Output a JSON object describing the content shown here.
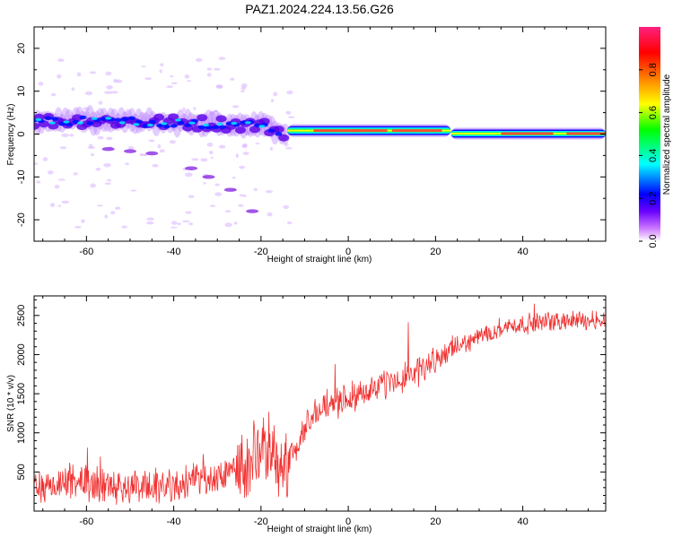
{
  "title": "PAZ1.2024.224.13.56.G26",
  "colors": {
    "snr_line": "#f03030",
    "axis": "#000000"
  },
  "chart_data": [
    {
      "type": "heatmap",
      "name": "spectrogram",
      "xlabel": "Height of straight line (km)",
      "ylabel": "Frequency (Hz)",
      "xlim": [
        -72,
        59
      ],
      "ylim": [
        -25,
        25
      ],
      "xticks": [
        -60,
        -40,
        -20,
        0,
        20,
        40
      ],
      "xtick_labels": [
        "-60",
        "-40",
        "-20",
        "0",
        "20",
        "40"
      ],
      "yticks": [
        20,
        10,
        0,
        -10,
        -20
      ],
      "ytick_labels": [
        "20",
        "10",
        "0",
        "-10",
        "-20"
      ],
      "colorbar": {
        "label": "Normalized spectral amplitude",
        "range": [
          0,
          1
        ],
        "ticks": [
          0.0,
          0.2,
          0.4,
          0.6,
          0.8
        ],
        "tick_labels": [
          "0.0",
          "0.2",
          "0.4",
          "0.6",
          "0.8"
        ],
        "colormap": [
          "#ffffff",
          "#cc77ff",
          "#6a00ff",
          "#0000ff",
          "#00ffff",
          "#00ff00",
          "#ffff00",
          "#ff8000",
          "#ff0000",
          "#ff2080"
        ]
      },
      "ridge": [
        {
          "x": -72,
          "y": 3.0
        },
        {
          "x": -60,
          "y": 3.2
        },
        {
          "x": -45,
          "y": 2.8
        },
        {
          "x": -30,
          "y": 2.5
        },
        {
          "x": -20,
          "y": 2.0
        },
        {
          "x": -14,
          "y": 0.3
        },
        {
          "x": 0,
          "y": 0.8
        },
        {
          "x": 22,
          "y": 0.8
        },
        {
          "x": 24,
          "y": 0.0
        },
        {
          "x": 59,
          "y": 0.3
        }
      ]
    },
    {
      "type": "line",
      "name": "snr",
      "xlabel": "Height of straight line (km)",
      "ylabel": "SNR (10 * v/v)",
      "xlim": [
        -72,
        59
      ],
      "ylim": [
        0,
        2750
      ],
      "xticks": [
        -60,
        -40,
        -20,
        0,
        20,
        40
      ],
      "xtick_labels": [
        "-60",
        "-40",
        "-20",
        "0",
        "20",
        "40"
      ],
      "yticks": [
        500,
        1000,
        1500,
        2000,
        2500
      ],
      "ytick_labels": [
        "500",
        "1000",
        "1500",
        "2000",
        "2500"
      ],
      "trend": [
        {
          "x": -72,
          "y": 350
        },
        {
          "x": -40,
          "y": 330
        },
        {
          "x": -30,
          "y": 400
        },
        {
          "x": -25,
          "y": 600
        },
        {
          "x": -20,
          "y": 700
        },
        {
          "x": -13,
          "y": 650
        },
        {
          "x": -10,
          "y": 1100
        },
        {
          "x": -5,
          "y": 1350
        },
        {
          "x": 5,
          "y": 1550
        },
        {
          "x": 15,
          "y": 1750
        },
        {
          "x": 25,
          "y": 2100
        },
        {
          "x": 35,
          "y": 2350
        },
        {
          "x": 45,
          "y": 2420
        },
        {
          "x": 59,
          "y": 2450
        }
      ]
    }
  ]
}
